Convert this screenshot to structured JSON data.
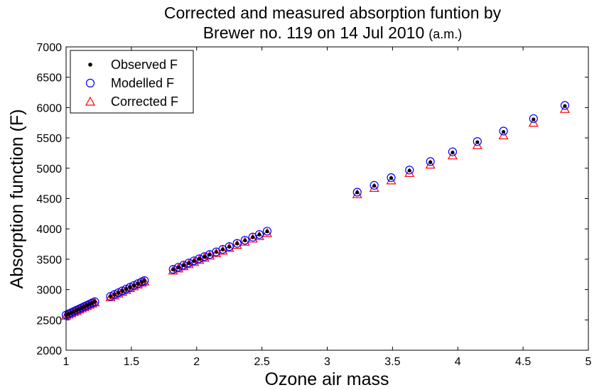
{
  "chart_data": {
    "type": "scatter",
    "title_line1": "Corrected and measured absorption funtion by",
    "title_line2_main": "Brewer no. 119 on 14 Jul 2010",
    "title_line2_suffix": "(a.m.)",
    "xlabel": "Ozone air mass",
    "ylabel": "Absorption function (F)",
    "xlim": [
      1,
      5
    ],
    "ylim": [
      2000,
      7000
    ],
    "xticks": [
      1,
      1.5,
      2,
      2.5,
      3,
      3.5,
      4,
      4.5,
      5
    ],
    "xtick_labels": [
      "1",
      "1.5",
      "2",
      "2.5",
      "3",
      "3.5",
      "4",
      "4.5",
      "5"
    ],
    "yticks": [
      2000,
      2500,
      3000,
      3500,
      4000,
      4500,
      5000,
      5500,
      6000,
      6500,
      7000
    ],
    "ytick_labels": [
      "2000",
      "2500",
      "3000",
      "3500",
      "4000",
      "4500",
      "5000",
      "5500",
      "6000",
      "6500",
      "7000"
    ],
    "grid": false,
    "legend_position": "top-left",
    "x": [
      1.0,
      1.02,
      1.04,
      1.06,
      1.08,
      1.1,
      1.12,
      1.14,
      1.16,
      1.18,
      1.2,
      1.22,
      1.34,
      1.37,
      1.4,
      1.43,
      1.46,
      1.49,
      1.52,
      1.55,
      1.58,
      1.6,
      1.82,
      1.86,
      1.9,
      1.94,
      1.98,
      2.02,
      2.06,
      2.1,
      2.15,
      2.2,
      2.25,
      2.31,
      2.37,
      2.43,
      2.48,
      2.54,
      3.23,
      3.36,
      3.49,
      3.63,
      3.79,
      3.96,
      4.15,
      4.35,
      4.58,
      4.82
    ],
    "series": [
      {
        "name": "Observed F",
        "marker": "dot",
        "color": "#000000",
        "values": [
          2578,
          2598,
          2618,
          2638,
          2658,
          2678,
          2698,
          2718,
          2738,
          2758,
          2778,
          2798,
          2885,
          2915,
          2945,
          2975,
          3005,
          3035,
          3065,
          3095,
          3125,
          3145,
          3330,
          3365,
          3400,
          3435,
          3470,
          3505,
          3540,
          3575,
          3618,
          3660,
          3705,
          3758,
          3810,
          3862,
          3905,
          3958,
          4600,
          4710,
          4838,
          4962,
          5100,
          5260,
          5430,
          5600,
          5805,
          6025
        ]
      },
      {
        "name": "Modelled F",
        "marker": "circle",
        "color": "#0000ff",
        "values": [
          2580,
          2600,
          2620,
          2640,
          2660,
          2680,
          2700,
          2720,
          2740,
          2760,
          2780,
          2800,
          2888,
          2918,
          2948,
          2978,
          3008,
          3038,
          3068,
          3098,
          3128,
          3148,
          3333,
          3368,
          3403,
          3438,
          3473,
          3508,
          3543,
          3578,
          3621,
          3663,
          3708,
          3761,
          3813,
          3865,
          3908,
          3962,
          4605,
          4718,
          4845,
          4970,
          5110,
          5270,
          5440,
          5612,
          5818,
          6035
        ]
      },
      {
        "name": "Corrected F",
        "marker": "triangle",
        "color": "#ff0000",
        "values": [
          2568,
          2588,
          2608,
          2628,
          2648,
          2668,
          2688,
          2708,
          2728,
          2748,
          2768,
          2788,
          2872,
          2902,
          2932,
          2962,
          2992,
          3022,
          3052,
          3082,
          3112,
          3132,
          3312,
          3347,
          3382,
          3417,
          3452,
          3487,
          3522,
          3557,
          3598,
          3640,
          3685,
          3735,
          3788,
          3838,
          3880,
          3930,
          4570,
          4675,
          4798,
          4920,
          5058,
          5210,
          5378,
          5540,
          5748,
          5975
        ]
      }
    ]
  }
}
